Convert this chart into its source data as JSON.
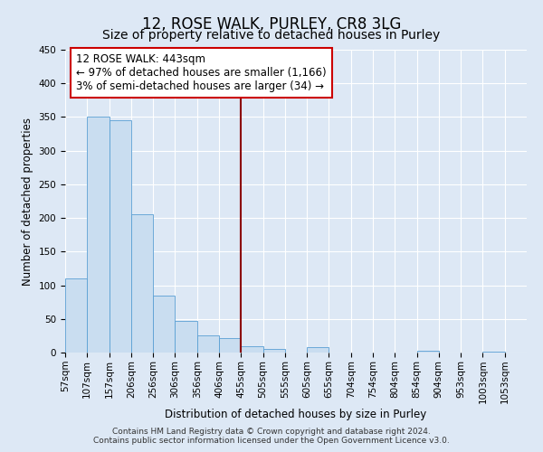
{
  "title": "12, ROSE WALK, PURLEY, CR8 3LG",
  "subtitle": "Size of property relative to detached houses in Purley",
  "xlabel": "Distribution of detached houses by size in Purley",
  "ylabel": "Number of detached properties",
  "bin_labels": [
    "57sqm",
    "107sqm",
    "157sqm",
    "206sqm",
    "256sqm",
    "306sqm",
    "356sqm",
    "406sqm",
    "455sqm",
    "505sqm",
    "555sqm",
    "605sqm",
    "655sqm",
    "704sqm",
    "754sqm",
    "804sqm",
    "854sqm",
    "904sqm",
    "953sqm",
    "1003sqm",
    "1053sqm"
  ],
  "bar_heights": [
    110,
    350,
    345,
    205,
    85,
    47,
    25,
    22,
    10,
    5,
    0,
    8,
    0,
    0,
    0,
    0,
    3,
    0,
    0,
    2,
    0
  ],
  "bar_color": "#c9ddf0",
  "bar_edge_color": "#5a9fd4",
  "vline_x": 8,
  "vline_color": "#8b0000",
  "annotation_title": "12 ROSE WALK: 443sqm",
  "annotation_line1": "← 97% of detached houses are smaller (1,166)",
  "annotation_line2": "3% of semi-detached houses are larger (34) →",
  "annotation_box_color": "#ffffff",
  "annotation_box_edge": "#cc0000",
  "ylim": [
    0,
    450
  ],
  "yticks": [
    0,
    50,
    100,
    150,
    200,
    250,
    300,
    350,
    400,
    450
  ],
  "background_color": "#dde8f5",
  "footer_line1": "Contains HM Land Registry data © Crown copyright and database right 2024.",
  "footer_line2": "Contains public sector information licensed under the Open Government Licence v3.0.",
  "title_fontsize": 12,
  "subtitle_fontsize": 10,
  "axis_label_fontsize": 8.5,
  "tick_fontsize": 7.5,
  "annotation_fontsize": 8.5,
  "footer_fontsize": 6.5
}
